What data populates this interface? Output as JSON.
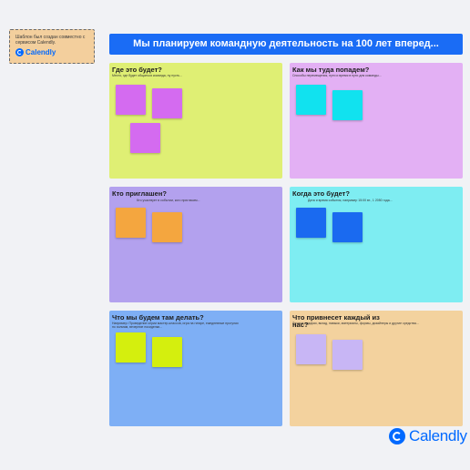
{
  "credit": {
    "text": "Шаблон был создан совместно с сервисом Calendly.",
    "logo_word": "Calendly"
  },
  "banner": {
    "title": "Мы планируем командную деятельность на 100 лет вперед..."
  },
  "cards": [
    {
      "title": "Где это будет?",
      "sub": "Место, где будет общаться команда, ну пусть...",
      "color": "#dfef74",
      "sticky_color": "#d46bf0"
    },
    {
      "title": "Как мы туда попадем?",
      "sub": "Способы перемещения, пути и время в пути для команды...",
      "color": "#e3b0f4",
      "sticky_color": "#11e2ef"
    },
    {
      "title": "Кто приглашен?",
      "sub": "Кто участвует в событии, кого пригласим...",
      "color": "#b3a1ee",
      "sticky_color": "#f4a63f"
    },
    {
      "title": "Когда это будет?",
      "sub": "Дата и время события, например 15:00 вт., 1 2050 года...",
      "color": "#7eedf2",
      "sticky_color": "#1a6af0"
    },
    {
      "title": "Что мы будем там делать?",
      "sub": "Например: Проведение серии мастер-классов, игра на гитаре, ежедневные прогулки по холмам, вечерние посиделки...",
      "color": "#7eaff5",
      "sticky_color": "#d4ef0e"
    },
    {
      "title": "Что привнесет каждый из нас?",
      "sub": "Личные подарки, вклад, навыки, материалы, формы, дизайнеры и другие средства...",
      "color": "#f3d29e",
      "sticky_color": "#c8b6f5"
    }
  ],
  "logo": {
    "word": "Calendly"
  }
}
